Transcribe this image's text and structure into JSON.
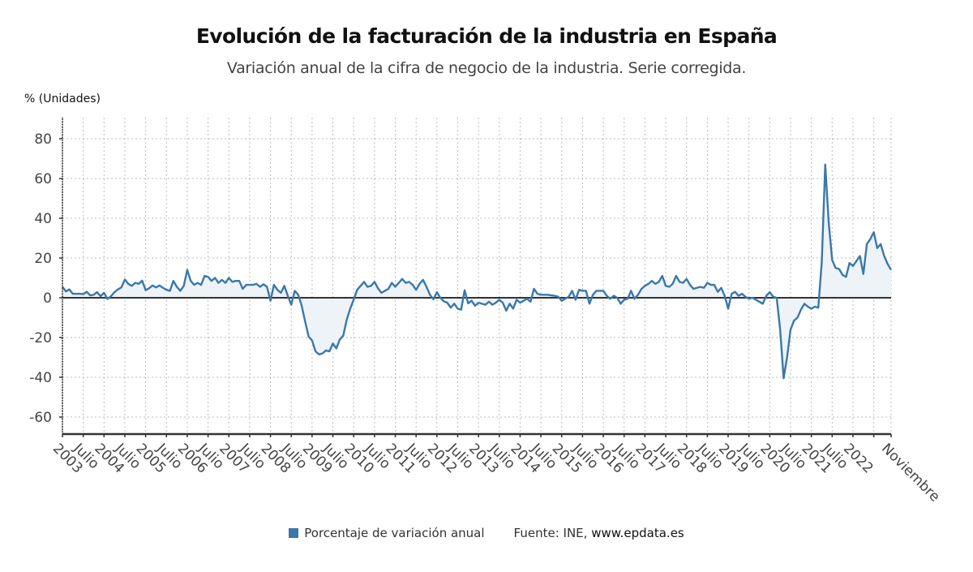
{
  "header": {
    "title": "Evolución de la facturación de la industria en España",
    "subtitle": "Variación anual de la cifra de negocio de la industria. Serie corregida.",
    "unit_label": "% (Unidades)"
  },
  "legend": {
    "series_label": "Porcentaje de variación anual",
    "source_prefix": "Fuente: INE, ",
    "source_site": "www.epdata.es"
  },
  "colors": {
    "line": "#3a78aa",
    "fill": "#eef3f8",
    "zero_line": "#333333",
    "grid": "#bbbbbb",
    "axis_text": "#444444"
  },
  "chart_data": {
    "type": "area",
    "title": "Evolución de la facturación de la industria en España",
    "subtitle": "Variación anual de la cifra de negocio de la industria. Serie corregida.",
    "xlabel": "",
    "ylabel": "% (Unidades)",
    "ylim": [
      -68,
      90
    ],
    "yticks": [
      80,
      60,
      40,
      20,
      0,
      -20,
      -40,
      -60
    ],
    "grid": true,
    "legend_position": "bottom",
    "x_start": "2003-01",
    "x_end": "2022-11",
    "x_tick_labels": [
      "2003",
      "Julio",
      "2004",
      "Julio",
      "2005",
      "Julio",
      "2006",
      "Julio",
      "2007",
      "Julio",
      "2008",
      "Julio",
      "2009",
      "Julio",
      "2010",
      "Julio",
      "2011",
      "Julio",
      "2012",
      "Julio",
      "2013",
      "Julio",
      "2014",
      "Julio",
      "2015",
      "Julio",
      "2016",
      "Julio",
      "2017",
      "Julio",
      "2018",
      "Julio",
      "2019",
      "Julio",
      "2020",
      "Julio",
      "2021",
      "Julio",
      "2022",
      "",
      "Noviembre"
    ],
    "series": [
      {
        "name": "Porcentaje de variación anual",
        "values": [
          5.5,
          3.2,
          4.2,
          2.0,
          2.0,
          2.0,
          1.8,
          3.0,
          1.2,
          1.5,
          2.8,
          0.8,
          2.5,
          -0.6,
          0.8,
          2.8,
          4.2,
          5.2,
          9.2,
          7.0,
          6.0,
          7.5,
          7.0,
          8.6,
          3.8,
          4.8,
          6.2,
          5.2,
          6.2,
          5.0,
          4.0,
          3.5,
          8.5,
          5.5,
          3.5,
          6.0,
          14.0,
          8.5,
          6.5,
          7.5,
          6.5,
          11.0,
          10.5,
          8.5,
          10.0,
          7.5,
          9.0,
          7.5,
          10.0,
          8.0,
          8.5,
          8.5,
          4.5,
          6.5,
          6.5,
          6.5,
          7.0,
          5.5,
          6.8,
          5.5,
          -1.5,
          6.5,
          4.0,
          2.5,
          6.0,
          1.0,
          -3.5,
          3.5,
          1.5,
          -4.0,
          -12.0,
          -19.5,
          -21.5,
          -27.0,
          -28.5,
          -28.0,
          -26.5,
          -27.0,
          -23.0,
          -25.5,
          -21.0,
          -19.0,
          -11.0,
          -5.5,
          -1.0,
          4.0,
          6.0,
          8.0,
          5.5,
          6.0,
          8.0,
          4.8,
          2.5,
          3.5,
          4.5,
          7.5,
          5.5,
          7.5,
          9.5,
          7.5,
          8.0,
          6.5,
          4.0,
          7.0,
          9.0,
          5.5,
          1.5,
          -0.8,
          2.8,
          0.0,
          -1.8,
          -2.5,
          -5.0,
          -3.0,
          -5.5,
          -6.0,
          3.8,
          -2.8,
          -1.5,
          -4.0,
          -2.5,
          -3.0,
          -3.5,
          -2.0,
          -3.5,
          -2.5,
          -1.0,
          -2.5,
          -6.5,
          -3.0,
          -5.5,
          -1.0,
          -2.5,
          -1.5,
          -0.5,
          -2.0,
          4.5,
          2.0,
          1.5,
          1.5,
          1.5,
          1.2,
          1.0,
          0.5,
          -1.5,
          -0.5,
          0.5,
          3.5,
          -1.0,
          4.0,
          3.5,
          3.5,
          -3.0,
          1.5,
          3.5,
          3.5,
          3.5,
          1.0,
          -0.5,
          1.0,
          0.0,
          -3.0,
          -1.0,
          -0.5,
          3.5,
          -0.5,
          1.5,
          4.5,
          6.0,
          7.0,
          8.5,
          7.0,
          8.0,
          11.0,
          6.0,
          5.5,
          7.0,
          11.0,
          8.0,
          7.5,
          9.5,
          6.5,
          4.5,
          5.0,
          5.5,
          5.0,
          7.5,
          6.5,
          6.5,
          3.0,
          5.0,
          1.0,
          -5.5,
          2.0,
          3.0,
          1.0,
          2.0,
          0.5,
          -0.5,
          0.0,
          -1.0,
          -2.0,
          -3.0,
          1.0,
          2.8,
          0.5,
          0.0,
          -16.0,
          -40.5,
          -30.0,
          -16.0,
          -11.5,
          -10.0,
          -6.0,
          -3.0,
          -4.5,
          -5.5,
          -4.5,
          -5.0,
          18.0,
          67.0,
          38.0,
          19.0,
          15.0,
          14.5,
          11.5,
          10.5,
          17.5,
          16.0,
          18.5,
          21.0,
          12.0,
          27.0,
          29.5,
          33.0,
          25.0,
          27.0,
          21.0,
          17.0,
          14.0
        ]
      }
    ]
  }
}
